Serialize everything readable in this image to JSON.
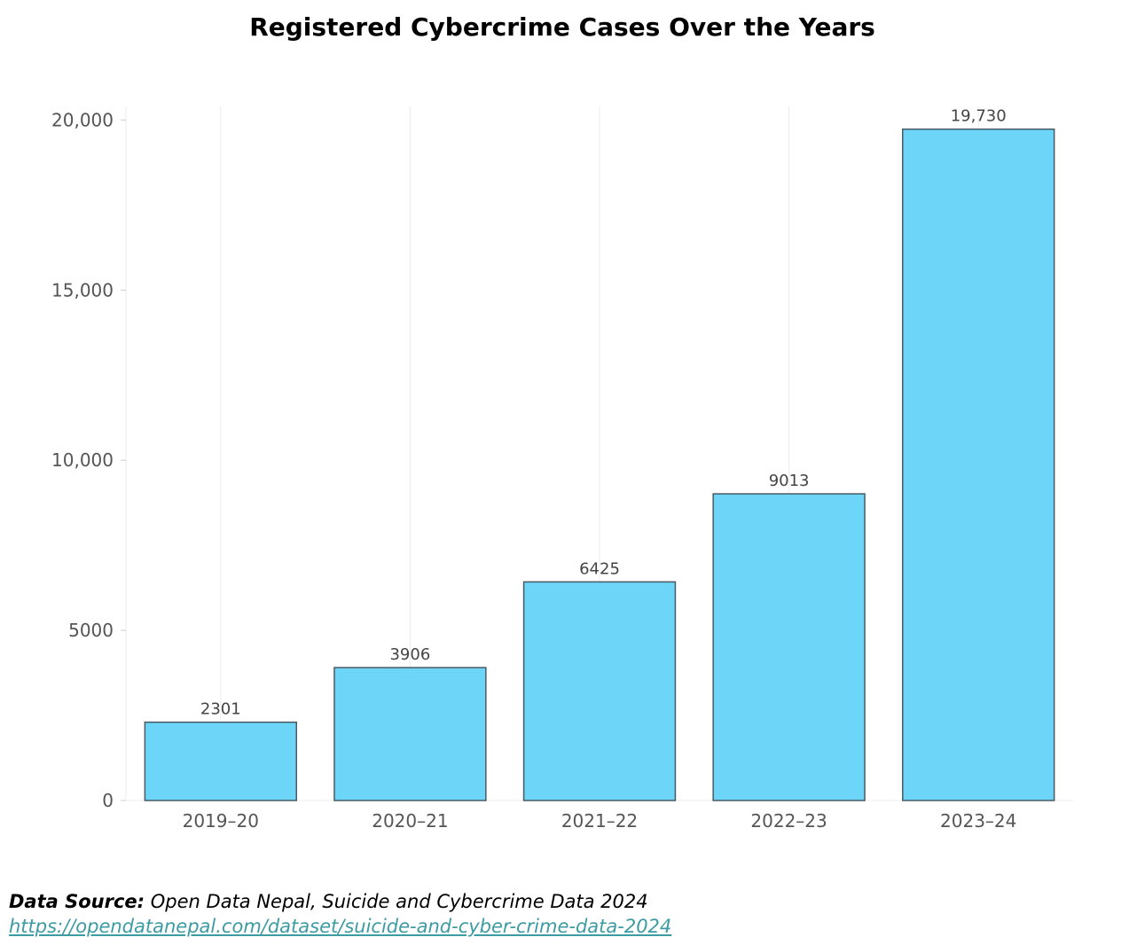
{
  "chart_data": {
    "type": "bar",
    "title": "Registered Cybercrime Cases Over the Years",
    "xlabel": "",
    "ylabel": "",
    "categories": [
      "2019–20",
      "2020–21",
      "2021–22",
      "2022–23",
      "2023–24"
    ],
    "values": [
      2301,
      3906,
      6425,
      9013,
      19730
    ],
    "data_labels": [
      "2301",
      "3906",
      "6425",
      "9013",
      "19,730"
    ],
    "y_ticks": [
      0,
      5000,
      10000,
      15000,
      20000
    ],
    "y_tick_labels": [
      "0",
      "5000",
      "10,000",
      "15,000",
      "20,000"
    ],
    "ylim": [
      0,
      20400
    ],
    "grid": "vertical",
    "legend": "none",
    "bar_color": "#6dd5f8",
    "bar_edge_color": "#4a5a63"
  },
  "source": {
    "label": "Data Source:",
    "text": "Open Data Nepal, Suicide and Cybercrime Data 2024",
    "url": "https://opendatanepal.com/dataset/suicide-and-cyber-crime-data-2024"
  }
}
